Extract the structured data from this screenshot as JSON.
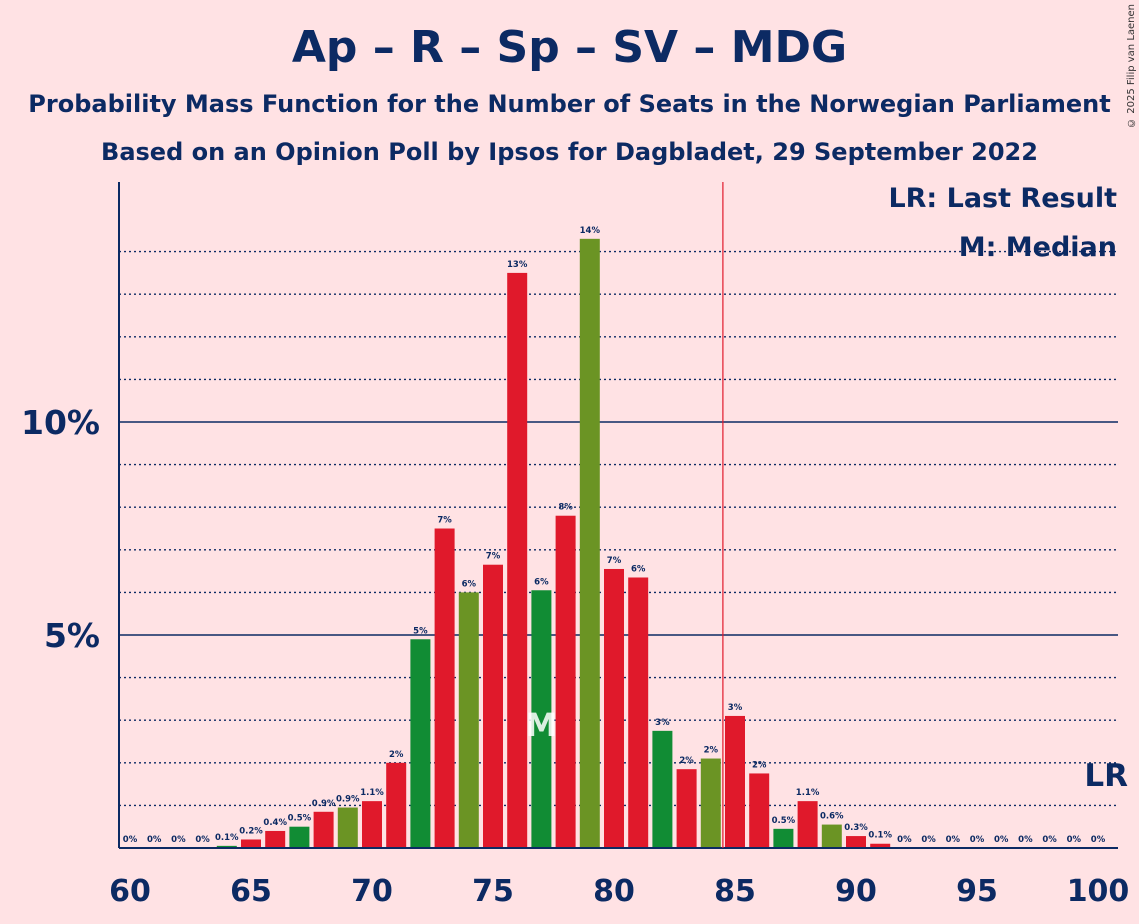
{
  "title": "Ap – R – Sp – SV – MDG",
  "subtitle_1": "Probability Mass Function for the Number of Seats in the Norwegian Parliament",
  "subtitle_2": "Based on an Opinion Poll by Ipsos for Dagbladet, 29 September 2022",
  "copyright": "© 2025 Filip van Laenen",
  "legend": {
    "last_result": "LR: Last Result",
    "median": "M: Median"
  },
  "colors": {
    "background": "#ffe2e4",
    "text": "#0c2a63",
    "red": "#e0192b",
    "dark_green": "#118c34",
    "olive_green": "#6b9424",
    "lr_line": "#e0192b"
  },
  "chart_data": {
    "type": "bar",
    "title": "Ap – R – Sp – SV – MDG",
    "xlabel": "",
    "ylabel": "",
    "ylim": [
      0,
      15.6
    ],
    "x_ticks": [
      "60",
      "65",
      "70",
      "75",
      "80",
      "85",
      "90",
      "95",
      "100"
    ],
    "y_ticks": [
      "5%",
      "10%"
    ],
    "grid": "dotted every 1%, solid at 5% and 10%",
    "last_result_seat": 85,
    "last_result_label": "LR",
    "median_seat": 77,
    "median_label": "M",
    "bars": [
      {
        "seat": 60,
        "value": 0.0,
        "label": "0%",
        "color": "red"
      },
      {
        "seat": 61,
        "value": 0.0,
        "label": "0%",
        "color": "red"
      },
      {
        "seat": 62,
        "value": 0.0,
        "label": "0%",
        "color": "red"
      },
      {
        "seat": 63,
        "value": 0.0,
        "label": "0%",
        "color": "red"
      },
      {
        "seat": 64,
        "value": 0.05,
        "label": "0.1%",
        "color": "dark_green"
      },
      {
        "seat": 65,
        "value": 0.2,
        "label": "0.2%",
        "color": "red"
      },
      {
        "seat": 66,
        "value": 0.4,
        "label": "0.4%",
        "color": "red"
      },
      {
        "seat": 67,
        "value": 0.5,
        "label": "0.5%",
        "color": "dark_green"
      },
      {
        "seat": 68,
        "value": 0.85,
        "label": "0.9%",
        "color": "red"
      },
      {
        "seat": 69,
        "value": 0.95,
        "label": "0.9%",
        "color": "olive_green"
      },
      {
        "seat": 70,
        "value": 1.1,
        "label": "1.1%",
        "color": "red"
      },
      {
        "seat": 71,
        "value": 2.0,
        "label": "2%",
        "color": "red"
      },
      {
        "seat": 72,
        "value": 4.9,
        "label": "5%",
        "color": "dark_green"
      },
      {
        "seat": 73,
        "value": 7.5,
        "label": "7%",
        "color": "red"
      },
      {
        "seat": 74,
        "value": 6.0,
        "label": "6%",
        "color": "olive_green"
      },
      {
        "seat": 75,
        "value": 6.65,
        "label": "7%",
        "color": "red"
      },
      {
        "seat": 76,
        "value": 13.5,
        "label": "13%",
        "color": "red"
      },
      {
        "seat": 77,
        "value": 6.05,
        "label": "6%",
        "color": "dark_green"
      },
      {
        "seat": 78,
        "value": 7.8,
        "label": "8%",
        "color": "red"
      },
      {
        "seat": 79,
        "value": 14.3,
        "label": "14%",
        "color": "olive_green"
      },
      {
        "seat": 80,
        "value": 6.55,
        "label": "7%",
        "color": "red"
      },
      {
        "seat": 81,
        "value": 6.35,
        "label": "6%",
        "color": "red"
      },
      {
        "seat": 82,
        "value": 2.75,
        "label": "3%",
        "color": "dark_green"
      },
      {
        "seat": 83,
        "value": 1.85,
        "label": "2%",
        "color": "red"
      },
      {
        "seat": 84,
        "value": 2.1,
        "label": "2%",
        "color": "olive_green"
      },
      {
        "seat": 85,
        "value": 3.1,
        "label": "3%",
        "color": "red"
      },
      {
        "seat": 86,
        "value": 1.75,
        "label": "2%",
        "color": "red"
      },
      {
        "seat": 87,
        "value": 0.45,
        "label": "0.5%",
        "color": "dark_green"
      },
      {
        "seat": 88,
        "value": 1.1,
        "label": "1.1%",
        "color": "red"
      },
      {
        "seat": 89,
        "value": 0.55,
        "label": "0.6%",
        "color": "olive_green"
      },
      {
        "seat": 90,
        "value": 0.28,
        "label": "0.3%",
        "color": "red"
      },
      {
        "seat": 91,
        "value": 0.1,
        "label": "0.1%",
        "color": "red"
      },
      {
        "seat": 92,
        "value": 0.0,
        "label": "0%",
        "color": "dark_green"
      },
      {
        "seat": 93,
        "value": 0.0,
        "label": "0%",
        "color": "red"
      },
      {
        "seat": 94,
        "value": 0.0,
        "label": "0%",
        "color": "olive_green"
      },
      {
        "seat": 95,
        "value": 0.0,
        "label": "0%",
        "color": "red"
      },
      {
        "seat": 96,
        "value": 0.0,
        "label": "0%",
        "color": "red"
      },
      {
        "seat": 97,
        "value": 0.0,
        "label": "0%",
        "color": "dark_green"
      },
      {
        "seat": 98,
        "value": 0.0,
        "label": "0%",
        "color": "red"
      },
      {
        "seat": 99,
        "value": 0.0,
        "label": "0%",
        "color": "olive_green"
      },
      {
        "seat": 100,
        "value": 0.0,
        "label": "0%",
        "color": "red"
      }
    ]
  }
}
